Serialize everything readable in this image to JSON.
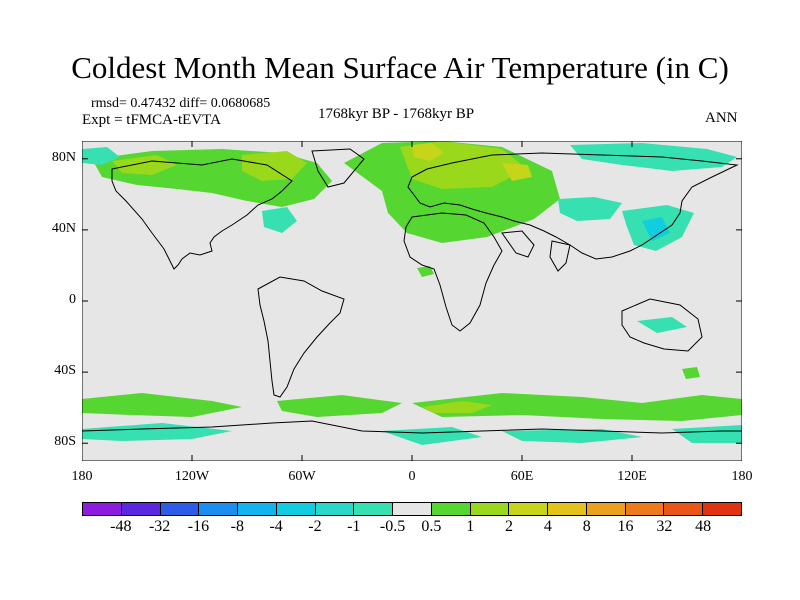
{
  "title": "Coldest Month Mean Surface Air Temperature (in C)",
  "stats": "rmsd= 0.47432  diff= 0.0680685",
  "experiment": "Expt = tFMCA-tEVTA",
  "period": "1768kyr BP - 1768kyr BP",
  "season": "ANN",
  "map": {
    "x_ticks": [
      "180",
      "120W",
      "60W",
      "0",
      "60E",
      "120E",
      "180"
    ],
    "y_ticks": [
      "80N",
      "40N",
      "0",
      "40S",
      "80S"
    ],
    "background_color": "#e6e6e6"
  },
  "colorbar": {
    "labels": [
      "-48",
      "-32",
      "-16",
      "-8",
      "-4",
      "-2",
      "-1",
      "-0.5",
      "0.5",
      "1",
      "2",
      "4",
      "8",
      "16",
      "32",
      "48"
    ],
    "colors": [
      "#8c1cde",
      "#5a28e0",
      "#2d5ce8",
      "#1b8ff0",
      "#12b4f0",
      "#12cde0",
      "#2ad8c8",
      "#36e0b0",
      "#e6e6e6",
      "#55d630",
      "#9ad81c",
      "#c6d41a",
      "#e4c21c",
      "#eba01e",
      "#ee7a1e",
      "#ea5618",
      "#e03312"
    ]
  },
  "chart_data": {
    "type": "heatmap",
    "title": "Coldest Month Mean Surface Air Temperature (in C)",
    "xlabel": "",
    "ylabel": "",
    "xlim": [
      -180,
      180
    ],
    "ylim": [
      -90,
      90
    ],
    "levels": [
      -48,
      -32,
      -16,
      -8,
      -4,
      -2,
      -1,
      -0.5,
      0.5,
      1,
      2,
      4,
      8,
      16,
      32,
      48
    ],
    "regions": [
      {
        "lon": [
          -175,
          -75
        ],
        "lat": [
          60,
          76
        ],
        "class": "1 to 2"
      },
      {
        "lon": [
          -35,
          35
        ],
        "lat": [
          55,
          82
        ],
        "class": "1 to 2"
      },
      {
        "lon": [
          35,
          95
        ],
        "lat": [
          45,
          80
        ],
        "class": "1 to 2"
      },
      {
        "lon": [
          0,
          20
        ],
        "lat": [
          72,
          82
        ],
        "class": "2 to 4"
      },
      {
        "lon": [
          -90,
          -55
        ],
        "lat": [
          35,
          50
        ],
        "class": "-1 to -0.5"
      },
      {
        "lon": [
          105,
          145
        ],
        "lat": [
          25,
          45
        ],
        "class": "-1 to -0.5"
      },
      {
        "lon": [
          -180,
          180
        ],
        "lat": [
          -70,
          -60
        ],
        "class": "0.5 to 2"
      },
      {
        "lon": [
          -180,
          180
        ],
        "lat": [
          -85,
          -72
        ],
        "class": "-1 to -0.5"
      }
    ]
  }
}
